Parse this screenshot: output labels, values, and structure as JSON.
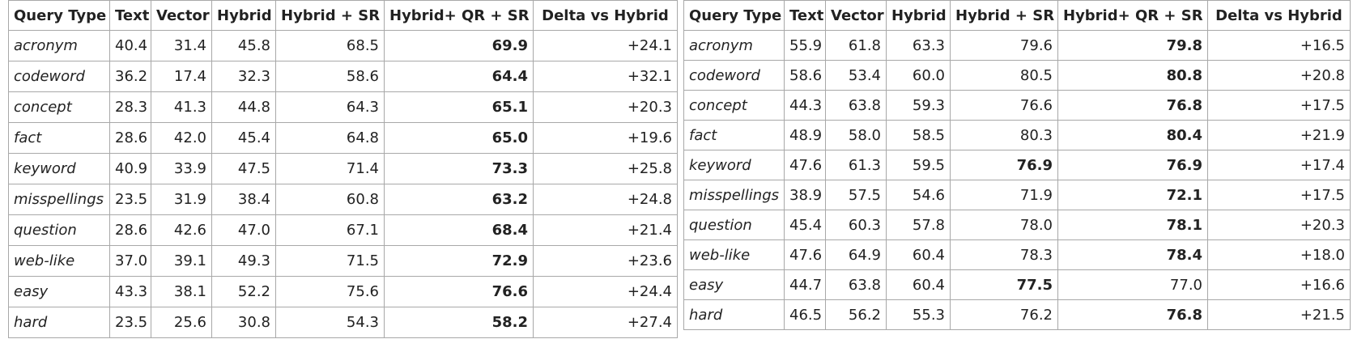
{
  "headers": [
    "Query Type",
    "Text",
    "Vector",
    "Hybrid",
    "Hybrid + SR",
    "Hybrid+ QR + SR",
    "Delta vs Hybrid"
  ],
  "tables": [
    {
      "rows": [
        {
          "type": "acronym",
          "cells": [
            "40.4",
            "31.4",
            "45.8",
            "68.5",
            "69.9",
            "+24.1"
          ],
          "bold": [
            4
          ]
        },
        {
          "type": "codeword",
          "cells": [
            "36.2",
            "17.4",
            "32.3",
            "58.6",
            "64.4",
            "+32.1"
          ],
          "bold": [
            4
          ]
        },
        {
          "type": "concept",
          "cells": [
            "28.3",
            "41.3",
            "44.8",
            "64.3",
            "65.1",
            "+20.3"
          ],
          "bold": [
            4
          ]
        },
        {
          "type": "fact",
          "cells": [
            "28.6",
            "42.0",
            "45.4",
            "64.8",
            "65.0",
            "+19.6"
          ],
          "bold": [
            4
          ]
        },
        {
          "type": "keyword",
          "cells": [
            "40.9",
            "33.9",
            "47.5",
            "71.4",
            "73.3",
            "+25.8"
          ],
          "bold": [
            4
          ]
        },
        {
          "type": "misspellings",
          "cells": [
            "23.5",
            "31.9",
            "38.4",
            "60.8",
            "63.2",
            "+24.8"
          ],
          "bold": [
            4
          ]
        },
        {
          "type": "question",
          "cells": [
            "28.6",
            "42.6",
            "47.0",
            "67.1",
            "68.4",
            "+21.4"
          ],
          "bold": [
            4
          ]
        },
        {
          "type": "web-like",
          "cells": [
            "37.0",
            "39.1",
            "49.3",
            "71.5",
            "72.9",
            "+23.6"
          ],
          "bold": [
            4
          ]
        },
        {
          "type": "easy",
          "cells": [
            "43.3",
            "38.1",
            "52.2",
            "75.6",
            "76.6",
            "+24.4"
          ],
          "bold": [
            4
          ]
        },
        {
          "type": "hard",
          "cells": [
            "23.5",
            "25.6",
            "30.8",
            "54.3",
            "58.2",
            "+27.4"
          ],
          "bold": [
            4
          ]
        }
      ]
    },
    {
      "rows": [
        {
          "type": "acronym",
          "cells": [
            "55.9",
            "61.8",
            "63.3",
            "79.6",
            "79.8",
            "+16.5"
          ],
          "bold": [
            4
          ]
        },
        {
          "type": "codeword",
          "cells": [
            "58.6",
            "53.4",
            "60.0",
            "80.5",
            "80.8",
            "+20.8"
          ],
          "bold": [
            4
          ]
        },
        {
          "type": "concept",
          "cells": [
            "44.3",
            "63.8",
            "59.3",
            "76.6",
            "76.8",
            "+17.5"
          ],
          "bold": [
            4
          ]
        },
        {
          "type": "fact",
          "cells": [
            "48.9",
            "58.0",
            "58.5",
            "80.3",
            "80.4",
            "+21.9"
          ],
          "bold": [
            4
          ]
        },
        {
          "type": "keyword",
          "cells": [
            "47.6",
            "61.3",
            "59.5",
            "76.9",
            "76.9",
            "+17.4"
          ],
          "bold": [
            3,
            4
          ]
        },
        {
          "type": "misspellings",
          "cells": [
            "38.9",
            "57.5",
            "54.6",
            "71.9",
            "72.1",
            "+17.5"
          ],
          "bold": [
            4
          ]
        },
        {
          "type": "question",
          "cells": [
            "45.4",
            "60.3",
            "57.8",
            "78.0",
            "78.1",
            "+20.3"
          ],
          "bold": [
            4
          ]
        },
        {
          "type": "web-like",
          "cells": [
            "47.6",
            "64.9",
            "60.4",
            "78.3",
            "78.4",
            "+18.0"
          ],
          "bold": [
            4
          ]
        },
        {
          "type": "easy",
          "cells": [
            "44.7",
            "63.8",
            "60.4",
            "77.5",
            "77.0",
            "+16.6"
          ],
          "bold": [
            3
          ]
        },
        {
          "type": "hard",
          "cells": [
            "46.5",
            "56.2",
            "55.3",
            "76.2",
            "76.8",
            "+21.5"
          ],
          "bold": [
            4
          ]
        }
      ]
    }
  ]
}
